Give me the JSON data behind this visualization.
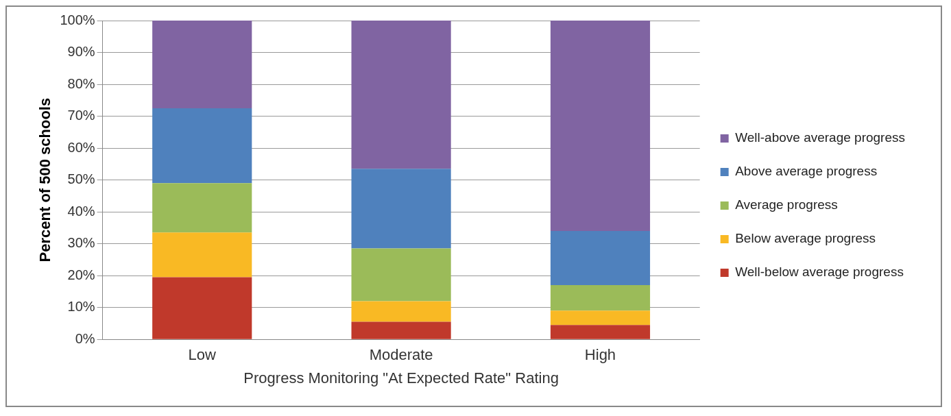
{
  "chart_data": {
    "type": "bar",
    "stacked": true,
    "xlabel": "Progress Monitoring \"At Expected Rate\" Rating",
    "ylabel": "Percent of 500 schools",
    "categories": [
      "Low",
      "Moderate",
      "High"
    ],
    "series": [
      {
        "name": "Well-below average progress",
        "color": "#c0392b",
        "values": [
          19.5,
          5.5,
          4.5
        ]
      },
      {
        "name": "Below average progress",
        "color": "#f9b924",
        "values": [
          14,
          6.5,
          4.5
        ]
      },
      {
        "name": "Average progress",
        "color": "#9bbb59",
        "values": [
          15.5,
          16.5,
          8
        ]
      },
      {
        "name": "Above average progress",
        "color": "#4f81bd",
        "values": [
          23.5,
          25,
          17
        ]
      },
      {
        "name": "Well-above average progress",
        "color": "#8064a2",
        "values": [
          27.5,
          46.5,
          66
        ]
      }
    ],
    "ylim": [
      0,
      100
    ],
    "yticks": [
      {
        "value": 0,
        "label": "0%"
      },
      {
        "value": 10,
        "label": "10%"
      },
      {
        "value": 20,
        "label": "20%"
      },
      {
        "value": 30,
        "label": "30%"
      },
      {
        "value": 40,
        "label": "40%"
      },
      {
        "value": 50,
        "label": "50%"
      },
      {
        "value": 60,
        "label": "60%"
      },
      {
        "value": 70,
        "label": "70%"
      },
      {
        "value": 80,
        "label": "80%"
      },
      {
        "value": 90,
        "label": "90%"
      },
      {
        "value": 100,
        "label": "100%"
      }
    ],
    "grid": "y",
    "legend": "right"
  }
}
